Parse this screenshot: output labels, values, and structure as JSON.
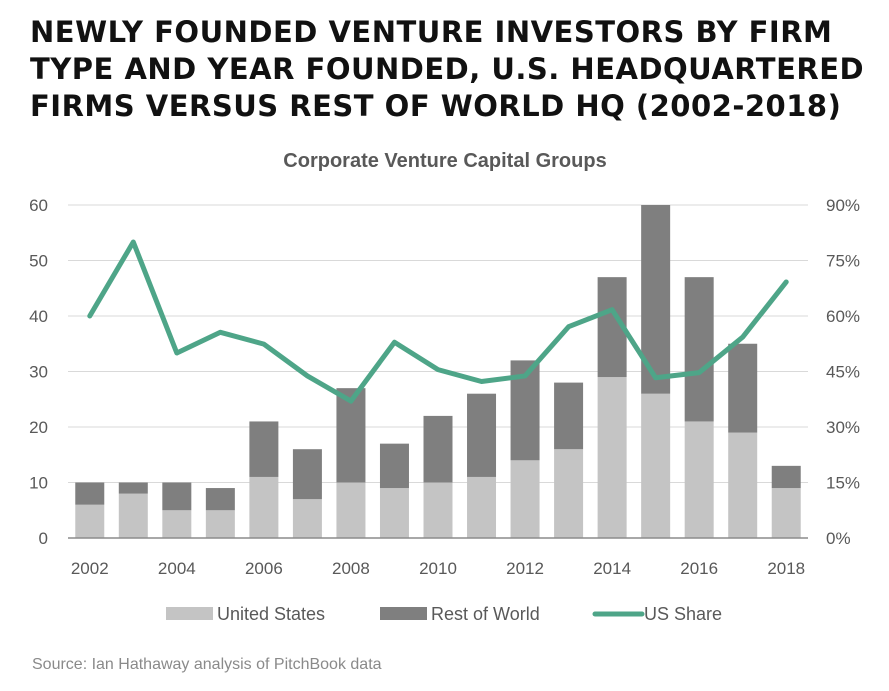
{
  "headline": {
    "line1": "NEWLY FOUNDED VENTURE INVESTORS BY FIRM",
    "line2": "TYPE AND YEAR FOUNDED, U.S. HEADQUARTERED",
    "line3": "FIRMS VERSUS REST OF WORLD HQ (2002-2018)"
  },
  "source": "Source: Ian Hathaway analysis of PitchBook data",
  "colors": {
    "us": "#c4c4c4",
    "row": "#7f7f7f",
    "share": "#4ea588",
    "grid": "#d9d9d9",
    "text": "#595959"
  },
  "chart_data": {
    "type": "bar",
    "title": "Corporate Venture Capital Groups",
    "categories": [
      "2002",
      "2003",
      "2004",
      "2005",
      "2006",
      "2007",
      "2008",
      "2009",
      "2010",
      "2011",
      "2012",
      "2013",
      "2014",
      "2015",
      "2016",
      "2017",
      "2018"
    ],
    "x_tick_labels": [
      "2002",
      "2004",
      "2006",
      "2008",
      "2010",
      "2012",
      "2014",
      "2016",
      "2018"
    ],
    "stacked": true,
    "series": [
      {
        "name": "United States",
        "type": "bar",
        "values": [
          6,
          8,
          5,
          5,
          11,
          7,
          10,
          9,
          10,
          11,
          14,
          16,
          29,
          26,
          21,
          19,
          9
        ]
      },
      {
        "name": "Rest of World",
        "type": "bar",
        "values": [
          4,
          2,
          5,
          4,
          10,
          9,
          17,
          8,
          12,
          15,
          18,
          12,
          18,
          34,
          26,
          16,
          4
        ]
      },
      {
        "name": "US Share",
        "type": "line",
        "axis": "right",
        "values": [
          60,
          80,
          50,
          55.6,
          52.4,
          43.8,
          37,
          52.9,
          45.5,
          42.3,
          43.8,
          57.1,
          61.7,
          43.3,
          44.7,
          54.3,
          69.2
        ]
      }
    ],
    "y_left": {
      "ylim": [
        0,
        60
      ],
      "ticks": [
        "0",
        "10",
        "20",
        "30",
        "40",
        "50",
        "60"
      ]
    },
    "y_right": {
      "ylim": [
        0,
        90
      ],
      "ticks": [
        "0%",
        "15%",
        "30%",
        "45%",
        "60%",
        "75%",
        "90%"
      ]
    },
    "grid": true,
    "legend_position": "bottom"
  }
}
